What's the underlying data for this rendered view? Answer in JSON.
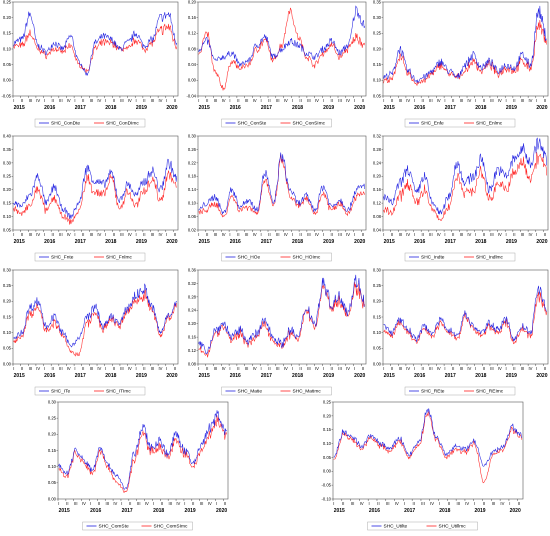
{
  "colors": {
    "series1": "#1f1fe0",
    "series2": "#ff2020",
    "frame": "#555555"
  },
  "chart_data": [
    {
      "type": "line",
      "xlim": [
        2015,
        2020.4
      ],
      "ylim": [
        -0.05,
        0.25
      ],
      "yticks": [
        "-0.05",
        "0.00",
        "0.05",
        "0.10",
        "0.15",
        "0.20",
        "0.25"
      ],
      "x_tick_labels": [
        "2015",
        "2016",
        "2017",
        "2018",
        "2019",
        "2020"
      ],
      "series": [
        {
          "name": "SHC_ConDte"
        },
        {
          "name": "SHC_ConDImc"
        }
      ],
      "anchors": [
        [
          0.12,
          0.11
        ],
        [
          0.13,
          0.11
        ],
        [
          0.21,
          0.15
        ],
        [
          0.11,
          0.1
        ],
        [
          0.09,
          0.08
        ],
        [
          0.12,
          0.1
        ],
        [
          0.1,
          0.09
        ],
        [
          0.14,
          0.11
        ],
        [
          0.06,
          0.05
        ],
        [
          0.02,
          0.03
        ],
        [
          0.12,
          0.1
        ],
        [
          0.14,
          0.12
        ],
        [
          0.13,
          0.12
        ],
        [
          0.1,
          0.1
        ],
        [
          0.12,
          0.1
        ],
        [
          0.15,
          0.13
        ],
        [
          0.11,
          0.1
        ],
        [
          0.13,
          0.12
        ],
        [
          0.2,
          0.16
        ],
        [
          0.21,
          0.17
        ],
        [
          0.12,
          0.11
        ]
      ]
    },
    {
      "type": "line",
      "xlim": [
        2015,
        2020.4
      ],
      "ylim": [
        -0.04,
        0.2
      ],
      "yticks": [
        "-0.04",
        "0.00",
        "0.04",
        "0.08",
        "0.12",
        "0.16",
        "0.20"
      ],
      "x_tick_labels": [
        "2015",
        "2016",
        "2017",
        "2018",
        "2019",
        "2020"
      ],
      "series": [
        {
          "name": "SHC_ConSte"
        },
        {
          "name": "SHC_ConSImc"
        }
      ],
      "anchors": [
        [
          0.08,
          0.07
        ],
        [
          0.1,
          0.12
        ],
        [
          0.05,
          0.02
        ],
        [
          0.06,
          -0.02
        ],
        [
          0.07,
          0.05
        ],
        [
          0.04,
          0.03
        ],
        [
          0.05,
          0.04
        ],
        [
          0.09,
          0.08
        ],
        [
          0.11,
          0.1
        ],
        [
          0.06,
          0.05
        ],
        [
          0.08,
          0.09
        ],
        [
          0.1,
          0.18
        ],
        [
          0.09,
          0.11
        ],
        [
          0.07,
          0.06
        ],
        [
          0.06,
          0.04
        ],
        [
          0.08,
          0.07
        ],
        [
          0.1,
          0.09
        ],
        [
          0.07,
          0.06
        ],
        [
          0.09,
          0.08
        ],
        [
          0.18,
          0.11
        ],
        [
          0.14,
          0.09
        ]
      ]
    },
    {
      "type": "line",
      "xlim": [
        2015,
        2020.4
      ],
      "ylim": [
        0.05,
        0.35
      ],
      "yticks": [
        "0.05",
        "0.10",
        "0.15",
        "0.20",
        "0.25",
        "0.30",
        "0.35"
      ],
      "x_tick_labels": [
        "2015",
        "2016",
        "2017",
        "2018",
        "2019",
        "2020"
      ],
      "series": [
        {
          "name": "SHC_Enfe"
        },
        {
          "name": "SHC_Enlmc"
        }
      ],
      "anchors": [
        [
          0.11,
          0.1
        ],
        [
          0.12,
          0.1
        ],
        [
          0.2,
          0.18
        ],
        [
          0.13,
          0.12
        ],
        [
          0.1,
          0.09
        ],
        [
          0.11,
          0.1
        ],
        [
          0.13,
          0.12
        ],
        [
          0.16,
          0.15
        ],
        [
          0.13,
          0.12
        ],
        [
          0.11,
          0.11
        ],
        [
          0.15,
          0.13
        ],
        [
          0.18,
          0.16
        ],
        [
          0.14,
          0.13
        ],
        [
          0.16,
          0.15
        ],
        [
          0.13,
          0.12
        ],
        [
          0.15,
          0.14
        ],
        [
          0.14,
          0.13
        ],
        [
          0.18,
          0.16
        ],
        [
          0.15,
          0.14
        ],
        [
          0.32,
          0.27
        ],
        [
          0.24,
          0.23
        ]
      ]
    },
    {
      "type": "line",
      "xlim": [
        2015,
        2020.4
      ],
      "ylim": [
        0.05,
        0.4
      ],
      "yticks": [
        "0.05",
        "0.10",
        "0.15",
        "0.20",
        "0.25",
        "0.30",
        "0.35",
        "0.40"
      ],
      "x_tick_labels": [
        "2015",
        "2016",
        "2017",
        "2018",
        "2019",
        "2020"
      ],
      "series": [
        {
          "name": "SHC_Fnte"
        },
        {
          "name": "SHC_Fnlmc"
        }
      ],
      "anchors": [
        [
          0.15,
          0.13
        ],
        [
          0.14,
          0.11
        ],
        [
          0.18,
          0.14
        ],
        [
          0.25,
          0.2
        ],
        [
          0.15,
          0.12
        ],
        [
          0.21,
          0.17
        ],
        [
          0.13,
          0.1
        ],
        [
          0.1,
          0.08
        ],
        [
          0.15,
          0.12
        ],
        [
          0.28,
          0.24
        ],
        [
          0.23,
          0.19
        ],
        [
          0.22,
          0.18
        ],
        [
          0.26,
          0.24
        ],
        [
          0.16,
          0.13
        ],
        [
          0.22,
          0.19
        ],
        [
          0.18,
          0.14
        ],
        [
          0.23,
          0.2
        ],
        [
          0.27,
          0.24
        ],
        [
          0.2,
          0.16
        ],
        [
          0.3,
          0.26
        ],
        [
          0.24,
          0.21
        ]
      ]
    },
    {
      "type": "line",
      "xlim": [
        2015,
        2020.4
      ],
      "ylim": [
        0.02,
        0.3
      ],
      "yticks": [
        "0.02",
        "0.06",
        "0.10",
        "0.14",
        "0.18",
        "0.22",
        "0.26",
        "0.30"
      ],
      "x_tick_labels": [
        "2015",
        "2016",
        "2017",
        "2018",
        "2019",
        "2020"
      ],
      "series": [
        {
          "name": "SHC_HOe"
        },
        {
          "name": "SHC_HOImc"
        }
      ],
      "anchors": [
        [
          0.08,
          0.07
        ],
        [
          0.1,
          0.08
        ],
        [
          0.12,
          0.1
        ],
        [
          0.07,
          0.06
        ],
        [
          0.14,
          0.12
        ],
        [
          0.09,
          0.08
        ],
        [
          0.11,
          0.09
        ],
        [
          0.08,
          0.07
        ],
        [
          0.19,
          0.17
        ],
        [
          0.1,
          0.09
        ],
        [
          0.24,
          0.23
        ],
        [
          0.14,
          0.12
        ],
        [
          0.1,
          0.09
        ],
        [
          0.12,
          0.11
        ],
        [
          0.08,
          0.07
        ],
        [
          0.15,
          0.13
        ],
        [
          0.09,
          0.08
        ],
        [
          0.11,
          0.1
        ],
        [
          0.08,
          0.07
        ],
        [
          0.14,
          0.12
        ],
        [
          0.15,
          0.13
        ]
      ]
    },
    {
      "type": "line",
      "xlim": [
        2015,
        2020.4
      ],
      "ylim": [
        0.04,
        0.32
      ],
      "yticks": [
        "0.04",
        "0.08",
        "0.12",
        "0.16",
        "0.20",
        "0.24",
        "0.28",
        "0.32"
      ],
      "x_tick_labels": [
        "2015",
        "2016",
        "2017",
        "2018",
        "2019",
        "2020"
      ],
      "series": [
        {
          "name": "SHC_Indte"
        },
        {
          "name": "SHC_Indlmc"
        }
      ],
      "anchors": [
        [
          0.14,
          0.1
        ],
        [
          0.12,
          0.09
        ],
        [
          0.18,
          0.14
        ],
        [
          0.22,
          0.18
        ],
        [
          0.15,
          0.12
        ],
        [
          0.2,
          0.16
        ],
        [
          0.12,
          0.1
        ],
        [
          0.09,
          0.07
        ],
        [
          0.14,
          0.11
        ],
        [
          0.24,
          0.2
        ],
        [
          0.18,
          0.15
        ],
        [
          0.2,
          0.16
        ],
        [
          0.25,
          0.21
        ],
        [
          0.16,
          0.13
        ],
        [
          0.22,
          0.18
        ],
        [
          0.2,
          0.16
        ],
        [
          0.25,
          0.21
        ],
        [
          0.28,
          0.24
        ],
        [
          0.24,
          0.2
        ],
        [
          0.3,
          0.26
        ],
        [
          0.25,
          0.22
        ]
      ]
    },
    {
      "type": "line",
      "xlim": [
        2015,
        2020.4
      ],
      "ylim": [
        0,
        0.3
      ],
      "yticks": [
        "0.00",
        "0.05",
        "0.10",
        "0.15",
        "0.20",
        "0.25",
        "0.30"
      ],
      "x_tick_labels": [
        "2015",
        "2016",
        "2017",
        "2018",
        "2019",
        "2020"
      ],
      "series": [
        {
          "name": "SHC_ITe"
        },
        {
          "name": "SHC_ITImc"
        }
      ],
      "anchors": [
        [
          0.08,
          0.07
        ],
        [
          0.1,
          0.09
        ],
        [
          0.18,
          0.16
        ],
        [
          0.2,
          0.18
        ],
        [
          0.12,
          0.11
        ],
        [
          0.15,
          0.13
        ],
        [
          0.1,
          0.09
        ],
        [
          0.06,
          0.04
        ],
        [
          0.08,
          0.03
        ],
        [
          0.15,
          0.13
        ],
        [
          0.18,
          0.16
        ],
        [
          0.12,
          0.11
        ],
        [
          0.15,
          0.14
        ],
        [
          0.13,
          0.12
        ],
        [
          0.18,
          0.17
        ],
        [
          0.22,
          0.2
        ],
        [
          0.24,
          0.22
        ],
        [
          0.18,
          0.17
        ],
        [
          0.1,
          0.09
        ],
        [
          0.16,
          0.15
        ],
        [
          0.19,
          0.18
        ]
      ]
    },
    {
      "type": "line",
      "xlim": [
        2015,
        2020.4
      ],
      "ylim": [
        0.08,
        0.36
      ],
      "yticks": [
        "0.08",
        "0.12",
        "0.16",
        "0.20",
        "0.24",
        "0.28",
        "0.32",
        "0.36"
      ],
      "x_tick_labels": [
        "2015",
        "2016",
        "2017",
        "2018",
        "2019",
        "2020"
      ],
      "series": [
        {
          "name": "SHC_Matie"
        },
        {
          "name": "SHC_Matimc"
        }
      ],
      "anchors": [
        [
          0.14,
          0.12
        ],
        [
          0.12,
          0.11
        ],
        [
          0.18,
          0.17
        ],
        [
          0.2,
          0.19
        ],
        [
          0.16,
          0.15
        ],
        [
          0.18,
          0.17
        ],
        [
          0.15,
          0.14
        ],
        [
          0.17,
          0.16
        ],
        [
          0.21,
          0.2
        ],
        [
          0.16,
          0.15
        ],
        [
          0.14,
          0.13
        ],
        [
          0.18,
          0.17
        ],
        [
          0.16,
          0.15
        ],
        [
          0.25,
          0.24
        ],
        [
          0.2,
          0.19
        ],
        [
          0.32,
          0.31
        ],
        [
          0.26,
          0.25
        ],
        [
          0.28,
          0.27
        ],
        [
          0.24,
          0.23
        ],
        [
          0.33,
          0.31
        ],
        [
          0.27,
          0.26
        ]
      ]
    },
    {
      "type": "line",
      "xlim": [
        2015,
        2020.4
      ],
      "ylim": [
        0,
        0.3
      ],
      "yticks": [
        "0.00",
        "0.05",
        "0.10",
        "0.15",
        "0.20",
        "0.25",
        "0.30"
      ],
      "x_tick_labels": [
        "2015",
        "2016",
        "2017",
        "2018",
        "2019",
        "2020"
      ],
      "series": [
        {
          "name": "SHC_REte"
        },
        {
          "name": "SHC_REImc"
        }
      ],
      "anchors": [
        [
          0.12,
          0.1
        ],
        [
          0.1,
          0.09
        ],
        [
          0.14,
          0.13
        ],
        [
          0.11,
          0.1
        ],
        [
          0.08,
          0.07
        ],
        [
          0.12,
          0.11
        ],
        [
          0.1,
          0.09
        ],
        [
          0.14,
          0.13
        ],
        [
          0.11,
          0.1
        ],
        [
          0.09,
          0.08
        ],
        [
          0.16,
          0.15
        ],
        [
          0.12,
          0.11
        ],
        [
          0.1,
          0.09
        ],
        [
          0.13,
          0.12
        ],
        [
          0.11,
          0.1
        ],
        [
          0.14,
          0.13
        ],
        [
          0.08,
          0.07
        ],
        [
          0.12,
          0.11
        ],
        [
          0.1,
          0.09
        ],
        [
          0.24,
          0.22
        ],
        [
          0.18,
          0.17
        ]
      ]
    },
    {
      "type": "line",
      "xlim": [
        2015,
        2020.4
      ],
      "ylim": [
        0,
        0.3
      ],
      "yticks": [
        "0.00",
        "0.05",
        "0.10",
        "0.15",
        "0.20",
        "0.25",
        "0.30"
      ],
      "x_tick_labels": [
        "2015",
        "2016",
        "2017",
        "2018",
        "2019",
        "2020"
      ],
      "series": [
        {
          "name": "SHC_ComSte"
        },
        {
          "name": "SHC_ComSImc"
        }
      ],
      "anchors": [
        [
          0.1,
          0.09
        ],
        [
          0.08,
          0.07
        ],
        [
          0.15,
          0.14
        ],
        [
          0.12,
          0.11
        ],
        [
          0.09,
          0.08
        ],
        [
          0.16,
          0.15
        ],
        [
          0.1,
          0.09
        ],
        [
          0.07,
          0.05
        ],
        [
          0.03,
          0.02
        ],
        [
          0.14,
          0.12
        ],
        [
          0.22,
          0.2
        ],
        [
          0.16,
          0.15
        ],
        [
          0.18,
          0.16
        ],
        [
          0.14,
          0.13
        ],
        [
          0.2,
          0.18
        ],
        [
          0.15,
          0.14
        ],
        [
          0.11,
          0.1
        ],
        [
          0.17,
          0.15
        ],
        [
          0.22,
          0.2
        ],
        [
          0.26,
          0.24
        ],
        [
          0.2,
          0.19
        ]
      ]
    },
    {
      "type": "line",
      "xlim": [
        2015,
        2020.4
      ],
      "ylim": [
        -0.1,
        0.25
      ],
      "yticks": [
        "-0.10",
        "-0.05",
        "0.00",
        "0.05",
        "0.10",
        "0.15",
        "0.20",
        "0.25"
      ],
      "x_tick_labels": [
        "2015",
        "2016",
        "2017",
        "2018",
        "2019",
        "2020"
      ],
      "series": [
        {
          "name": "SHC_Utilte"
        },
        {
          "name": "SHC_Utillmc"
        }
      ],
      "anchors": [
        [
          0.05,
          0.04
        ],
        [
          0.14,
          0.13
        ],
        [
          0.12,
          0.11
        ],
        [
          0.09,
          0.08
        ],
        [
          0.13,
          0.12
        ],
        [
          0.1,
          0.09
        ],
        [
          0.08,
          0.07
        ],
        [
          0.12,
          0.11
        ],
        [
          0.06,
          0.05
        ],
        [
          0.1,
          0.09
        ],
        [
          0.22,
          0.21
        ],
        [
          0.12,
          0.11
        ],
        [
          0.06,
          0.05
        ],
        [
          0.09,
          0.08
        ],
        [
          0.08,
          0.07
        ],
        [
          0.11,
          0.1
        ],
        [
          0.02,
          -0.04
        ],
        [
          0.07,
          0.06
        ],
        [
          0.09,
          0.08
        ],
        [
          0.16,
          0.15
        ],
        [
          0.13,
          0.12
        ]
      ]
    }
  ]
}
